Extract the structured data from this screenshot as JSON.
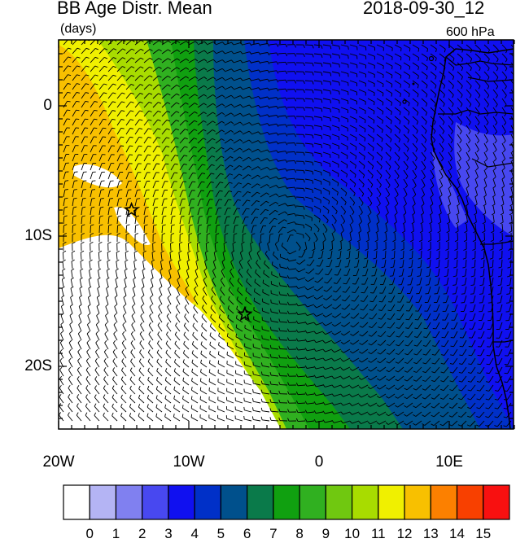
{
  "header": {
    "title": "BB Age Distr. Mean",
    "units": "(days)",
    "datetime": "2018-09-30_12",
    "level": "600 hPa"
  },
  "map": {
    "lat_range": [
      -24,
      4
    ],
    "lon_range": [
      -20,
      15
    ],
    "markers": [
      {
        "name": "star-marker",
        "lon": -14.4,
        "lat": -8.0
      },
      {
        "name": "star-marker",
        "lon": -5.7,
        "lat": -16.0
      }
    ],
    "fill_variable": "smoke age (days)",
    "overlay": "wind barbs"
  },
  "axes": {
    "lat_ticks": [
      {
        "value": 0,
        "label": "0"
      },
      {
        "value": -10,
        "label": "10S"
      },
      {
        "value": -20,
        "label": "20S"
      }
    ],
    "lon_ticks": [
      {
        "value": -20,
        "label": "20W"
      },
      {
        "value": -10,
        "label": "10W"
      },
      {
        "value": 0,
        "label": "0"
      },
      {
        "value": 10,
        "label": "10E"
      }
    ]
  },
  "colorbar": {
    "labels": [
      "0",
      "1",
      "2",
      "3",
      "4",
      "5",
      "6",
      "7",
      "8",
      "9",
      "10",
      "11",
      "12",
      "13",
      "14",
      "15"
    ],
    "colors": [
      "#ffffff",
      "#b4b4f4",
      "#8080f0",
      "#4848f0",
      "#1010f0",
      "#0030c8",
      "#00508c",
      "#0a7a4a",
      "#10a010",
      "#30b020",
      "#70c810",
      "#a8dc00",
      "#f0f000",
      "#f8c000",
      "#fc8000",
      "#f84000",
      "#f81010"
    ]
  }
}
